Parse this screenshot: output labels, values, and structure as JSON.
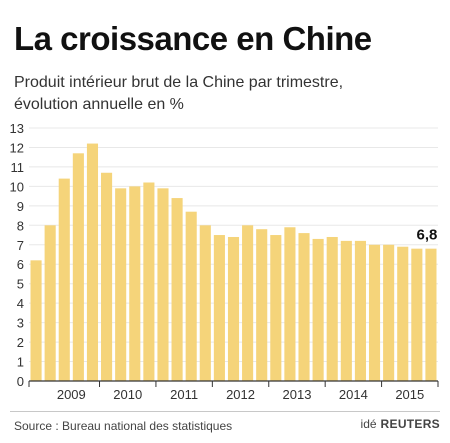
{
  "header": {
    "title": "La croissance en Chine",
    "subtitle_line1": "Produit intérieur brut de la Chine par trimestre,",
    "subtitle_line2": "évolution annuelle en %"
  },
  "footer": {
    "source": "Source : Bureau national des statistiques",
    "logo_prefix": "idé",
    "logo_name": "REUTERS"
  },
  "colors": {
    "bar": "#f5d47a",
    "axis": "#333333",
    "grid": "#e8e8e8"
  },
  "chart_data": {
    "type": "bar",
    "title": "La croissance en Chine",
    "subtitle": "Produit intérieur brut de la Chine par trimestre, évolution annuelle en %",
    "ylim": [
      0,
      13
    ],
    "yticks": [
      0,
      1,
      2,
      3,
      4,
      5,
      6,
      7,
      8,
      9,
      10,
      11,
      12,
      13
    ],
    "year_labels": [
      "2009",
      "2010",
      "2011",
      "2012",
      "2013",
      "2014",
      "2015"
    ],
    "categories": [
      "2008-T4",
      "2009-T1",
      "2009-T2",
      "2009-T3",
      "2009-T4",
      "2010-T1",
      "2010-T2",
      "2010-T3",
      "2010-T4",
      "2011-T1",
      "2011-T2",
      "2011-T3",
      "2011-T4",
      "2012-T1",
      "2012-T2",
      "2012-T3",
      "2012-T4",
      "2013-T1",
      "2013-T2",
      "2013-T3",
      "2013-T4",
      "2014-T1",
      "2014-T2",
      "2014-T3",
      "2014-T4",
      "2015-T1",
      "2015-T2",
      "2015-T3",
      "2015-T4"
    ],
    "values": [
      6.2,
      8.0,
      10.4,
      11.7,
      12.2,
      10.7,
      9.9,
      10.0,
      10.2,
      9.9,
      9.4,
      8.7,
      8.0,
      7.5,
      7.4,
      8.0,
      7.8,
      7.5,
      7.9,
      7.6,
      7.3,
      7.4,
      7.2,
      7.2,
      7.0,
      7.0,
      6.9,
      6.8,
      6.8
    ],
    "last_value_label": "6,8",
    "grid": true,
    "legend": "none"
  }
}
